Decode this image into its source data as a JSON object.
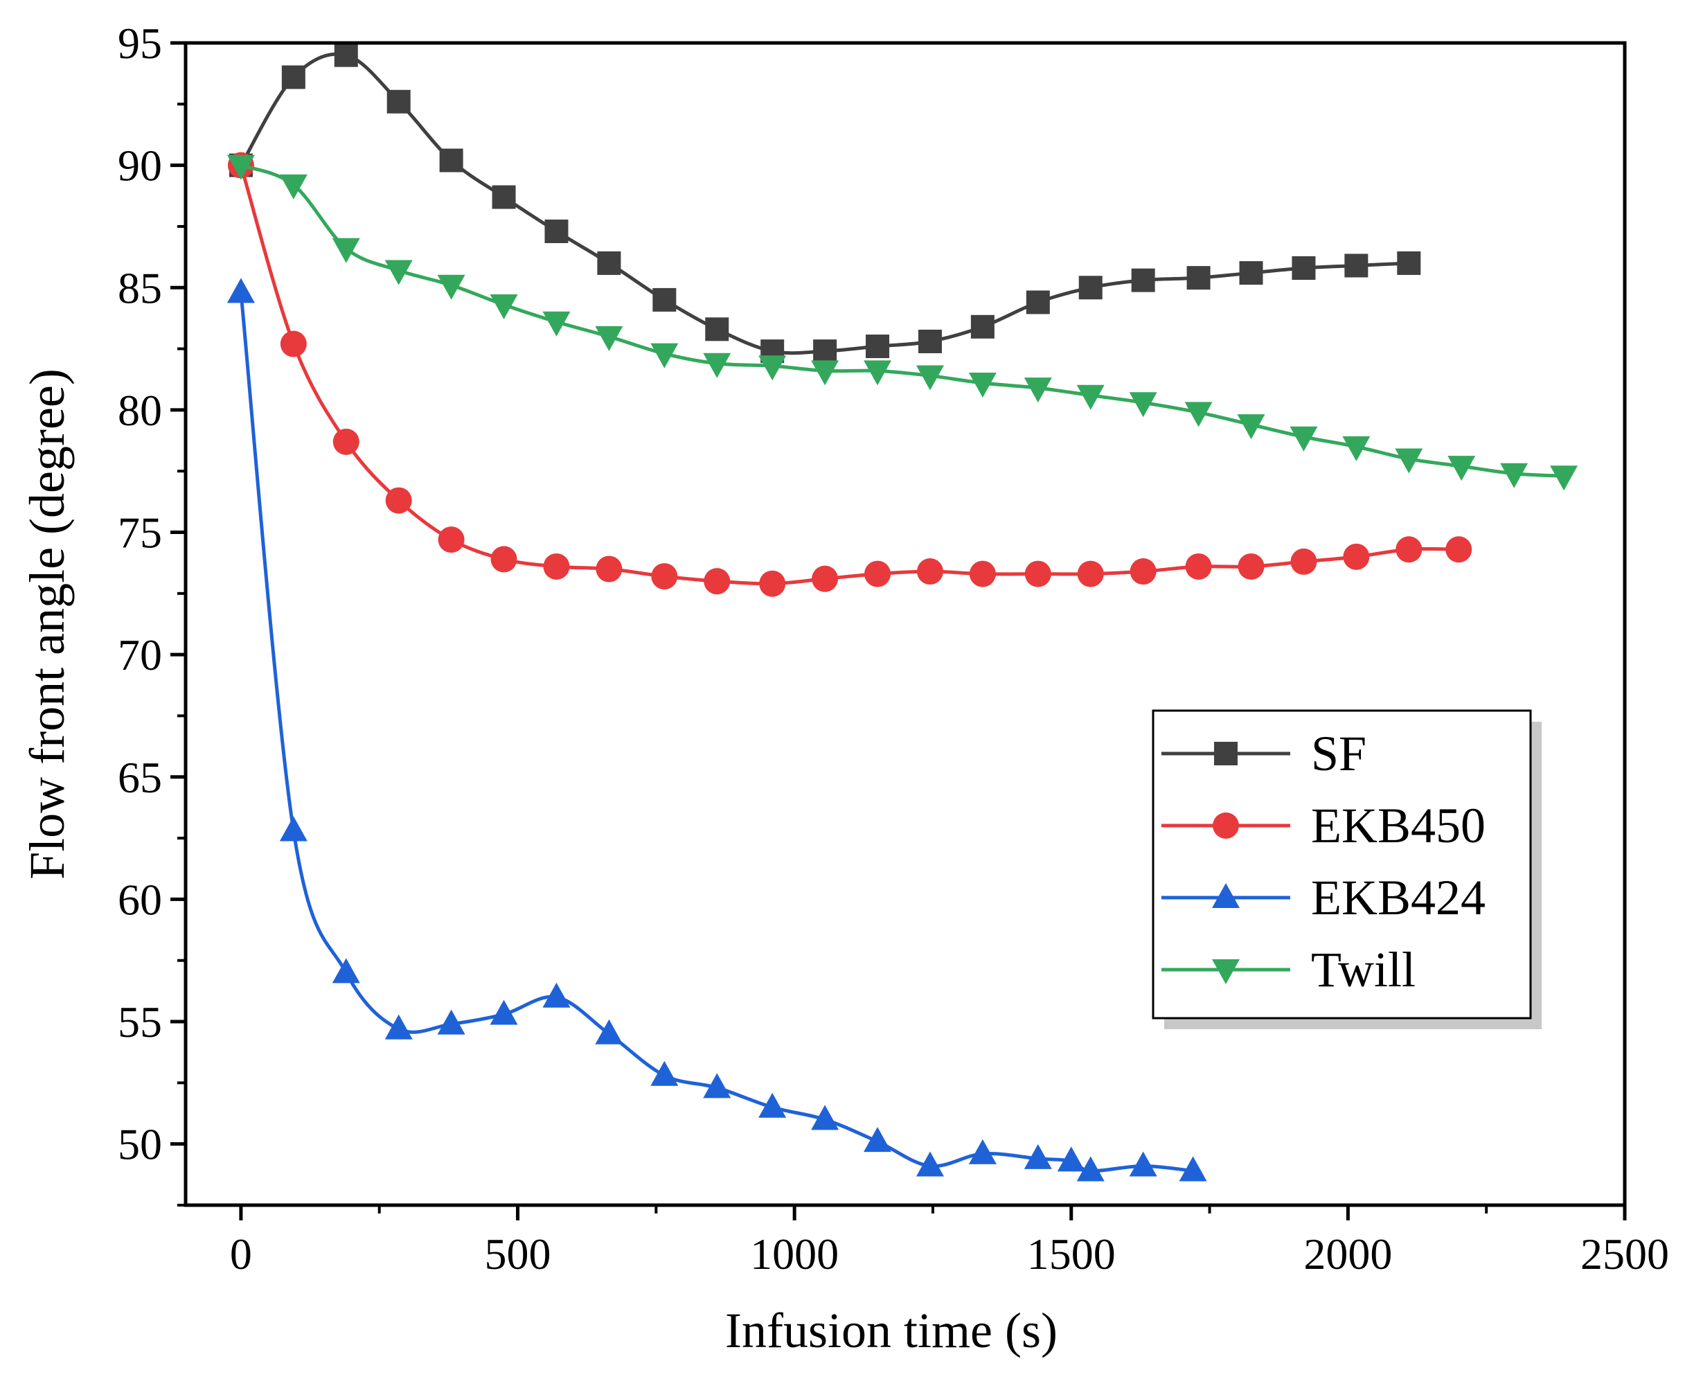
{
  "chart_data": {
    "type": "line",
    "title": "",
    "xlabel": "Infusion time (s)",
    "ylabel": "Flow front angle (degree)",
    "xlim": [
      -100,
      2500
    ],
    "ylim": [
      47.5,
      95
    ],
    "xticks": [
      0,
      500,
      1000,
      1500,
      2000,
      2500
    ],
    "yticks": [
      50,
      55,
      60,
      65,
      70,
      75,
      80,
      85,
      90,
      95
    ],
    "xtick_labels": [
      "0",
      "500",
      "1000",
      "1500",
      "2000",
      "2500"
    ],
    "ytick_labels": [
      "50",
      "55",
      "60",
      "65",
      "70",
      "75",
      "80",
      "85",
      "90",
      "95"
    ],
    "legend_position": "center-right",
    "series": [
      {
        "name": "SF",
        "color": "#404040",
        "marker": "square",
        "x": [
          0,
          95,
          190,
          285,
          380,
          475,
          570,
          665,
          765,
          860,
          960,
          1055,
          1150,
          1245,
          1340,
          1440,
          1535,
          1630,
          1730,
          1825,
          1920,
          2015,
          2110
        ],
        "y": [
          90.0,
          93.6,
          94.5,
          92.6,
          90.2,
          88.7,
          87.3,
          86.0,
          84.5,
          83.3,
          82.4,
          82.4,
          82.6,
          82.8,
          83.4,
          84.4,
          85.0,
          85.3,
          85.4,
          85.6,
          85.8,
          85.9,
          86.0
        ]
      },
      {
        "name": "EKB450",
        "color": "#e8393c",
        "marker": "circle",
        "x": [
          0,
          95,
          190,
          285,
          380,
          475,
          570,
          665,
          765,
          860,
          960,
          1055,
          1150,
          1245,
          1340,
          1440,
          1535,
          1630,
          1730,
          1825,
          1920,
          2015,
          2110,
          2200
        ],
        "y": [
          90.0,
          82.7,
          78.7,
          76.3,
          74.7,
          73.9,
          73.6,
          73.5,
          73.2,
          73.0,
          72.9,
          73.1,
          73.3,
          73.4,
          73.3,
          73.3,
          73.3,
          73.4,
          73.6,
          73.6,
          73.8,
          74.0,
          74.3,
          74.3
        ]
      },
      {
        "name": "EKB424",
        "color": "#1f62d8",
        "marker": "triangle-up",
        "x": [
          0,
          95,
          190,
          285,
          380,
          475,
          570,
          665,
          765,
          860,
          960,
          1055,
          1150,
          1245,
          1340,
          1440,
          1500,
          1535,
          1630,
          1720
        ],
        "y": [
          84.8,
          62.8,
          57.0,
          54.7,
          54.9,
          55.3,
          56.0,
          54.5,
          52.8,
          52.3,
          51.5,
          51.0,
          50.1,
          49.1,
          49.6,
          49.4,
          49.3,
          48.9,
          49.1,
          48.9
        ]
      },
      {
        "name": "Twill",
        "color": "#33a85c",
        "marker": "triangle-down",
        "x": [
          0,
          95,
          190,
          285,
          380,
          475,
          570,
          665,
          765,
          860,
          960,
          1055,
          1150,
          1245,
          1340,
          1440,
          1535,
          1630,
          1730,
          1825,
          1920,
          2015,
          2110,
          2205,
          2300,
          2390
        ],
        "y": [
          90.0,
          89.2,
          86.6,
          85.7,
          85.1,
          84.3,
          83.6,
          83.0,
          82.3,
          81.9,
          81.8,
          81.6,
          81.6,
          81.4,
          81.1,
          80.9,
          80.6,
          80.3,
          79.9,
          79.4,
          78.9,
          78.5,
          78.0,
          77.7,
          77.4,
          77.3
        ]
      }
    ]
  }
}
